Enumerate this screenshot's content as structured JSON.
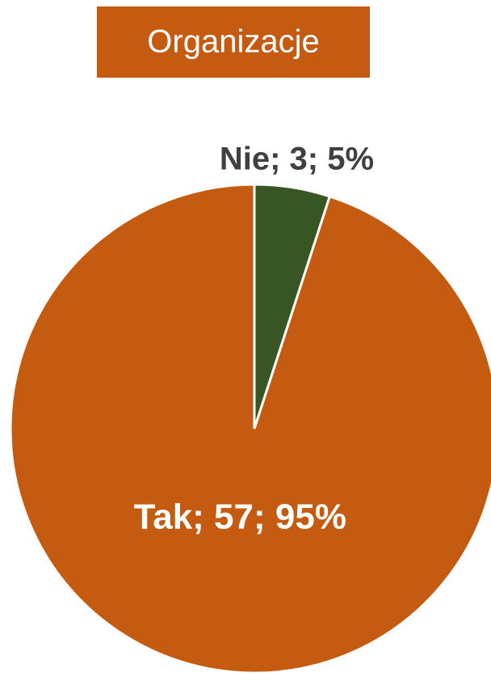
{
  "chart_data": {
    "type": "pie",
    "title": "Organizacje",
    "values": [
      3,
      57
    ],
    "value_labels": [
      "Nie; 3; 5%",
      "Tak; 57; 95%"
    ],
    "colors": [
      "#375623",
      "#c55a11"
    ]
  }
}
